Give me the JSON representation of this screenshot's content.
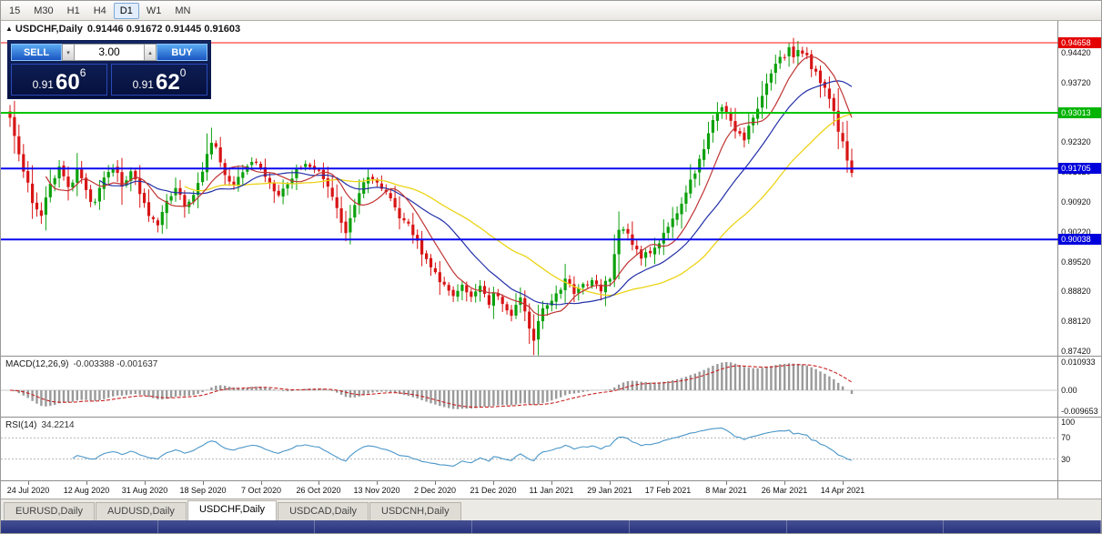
{
  "toolbar": {
    "timeframes": [
      {
        "label": "15",
        "active": false
      },
      {
        "label": "M30",
        "active": false
      },
      {
        "label": "H1",
        "active": false
      },
      {
        "label": "H4",
        "active": false
      },
      {
        "label": "D1",
        "active": true
      },
      {
        "label": "W1",
        "active": false
      },
      {
        "label": "MN",
        "active": false
      }
    ]
  },
  "chart": {
    "collapse_icon": "▲",
    "symbol": "USDCHF,Daily",
    "ohlc_text": "0.91446 0.91672 0.91445 0.91603",
    "trade": {
      "sell_label": "SELL",
      "buy_label": "BUY",
      "volume": "3.00",
      "spin_down_icon": "▾",
      "spin_up_icon": "▴",
      "sell_price": {
        "prefix": "0.91",
        "big": "60",
        "sup": "6"
      },
      "buy_price": {
        "prefix": "0.91",
        "big": "62",
        "sup": "0"
      }
    },
    "colors": {
      "bull": "#0ca10c",
      "bear": "#d81414",
      "ma_fast_red": "#c03434",
      "ma_mid_blue": "#2330a8",
      "ma_slow_yellow": "#ecd416",
      "zero_line": "#c8c8c8",
      "macd_hist": "#9a9a9a",
      "macd_signal": "#c82222",
      "rsi_line": "#4a96c8",
      "rsi_level": "#b8b8b8"
    },
    "price_axis": {
      "ticks": [
        "0.94420",
        "0.93720",
        "0.93020",
        "0.92320",
        "0.91620",
        "0.90920",
        "0.90220",
        "0.89520",
        "0.88820",
        "0.88120",
        "0.87420"
      ],
      "badges": [
        {
          "value": "0.94658",
          "color": "#e40000"
        },
        {
          "value": "0.93013",
          "color": "#00b400"
        },
        {
          "value": "0.91705",
          "color": "#0000dc"
        },
        {
          "value": "0.90038",
          "color": "#0000dc"
        }
      ]
    },
    "hlines": [
      {
        "price": 0.94658,
        "color": "#ff1010",
        "w": 1
      },
      {
        "price": 0.93013,
        "color": "#00c400",
        "w": 2
      },
      {
        "price": 0.91705,
        "color": "#0a0af0",
        "w": 2
      },
      {
        "price": 0.90038,
        "color": "#0a0af0",
        "w": 2
      }
    ],
    "scale": {
      "pmax": 0.9517,
      "pmin": 0.8729
    },
    "bars": 189,
    "last_close": 0.91603,
    "ma_periods": {
      "fast": 9,
      "mid": 21,
      "slow": 40
    },
    "price_path": [
      [
        0,
        0.9285
      ],
      [
        1,
        0.924
      ],
      [
        3,
        0.917
      ],
      [
        5,
        0.9095
      ],
      [
        7,
        0.9065
      ],
      [
        9,
        0.913
      ],
      [
        11,
        0.917
      ],
      [
        13,
        0.912
      ],
      [
        15,
        0.9165
      ],
      [
        17,
        0.9115
      ],
      [
        19,
        0.9085
      ],
      [
        21,
        0.915
      ],
      [
        23,
        0.9175
      ],
      [
        25,
        0.9135
      ],
      [
        27,
        0.9165
      ],
      [
        29,
        0.911
      ],
      [
        31,
        0.906
      ],
      [
        33,
        0.9035
      ],
      [
        35,
        0.9095
      ],
      [
        37,
        0.913
      ],
      [
        39,
        0.9085
      ],
      [
        41,
        0.9115
      ],
      [
        43,
        0.916
      ],
      [
        45,
        0.9235
      ],
      [
        46,
        0.9215
      ],
      [
        48,
        0.915
      ],
      [
        50,
        0.9135
      ],
      [
        52,
        0.9165
      ],
      [
        54,
        0.919
      ],
      [
        56,
        0.9175
      ],
      [
        58,
        0.914
      ],
      [
        60,
        0.911
      ],
      [
        62,
        0.913
      ],
      [
        64,
        0.917
      ],
      [
        66,
        0.9185
      ],
      [
        68,
        0.9165
      ],
      [
        70,
        0.915
      ],
      [
        72,
        0.911
      ],
      [
        74,
        0.904
      ],
      [
        75,
        0.9025
      ],
      [
        77,
        0.909
      ],
      [
        79,
        0.9135
      ],
      [
        81,
        0.915
      ],
      [
        83,
        0.9125
      ],
      [
        85,
        0.91
      ],
      [
        87,
        0.906
      ],
      [
        89,
        0.904
      ],
      [
        91,
        0.8995
      ],
      [
        93,
        0.8955
      ],
      [
        95,
        0.8925
      ],
      [
        97,
        0.8895
      ],
      [
        99,
        0.8868
      ],
      [
        101,
        0.8905
      ],
      [
        103,
        0.8862
      ],
      [
        105,
        0.8895
      ],
      [
        107,
        0.885
      ],
      [
        108,
        0.8875
      ],
      [
        110,
        0.886
      ],
      [
        112,
        0.8825
      ],
      [
        114,
        0.887
      ],
      [
        116,
        0.88
      ],
      [
        117,
        0.876
      ],
      [
        118,
        0.882
      ],
      [
        120,
        0.8855
      ],
      [
        122,
        0.888
      ],
      [
        124,
        0.8905
      ],
      [
        126,
        0.888
      ],
      [
        128,
        0.8895
      ],
      [
        130,
        0.891
      ],
      [
        132,
        0.889
      ],
      [
        134,
        0.8915
      ],
      [
        136,
        0.902
      ],
      [
        137,
        0.9032
      ],
      [
        139,
        0.8988
      ],
      [
        141,
        0.8958
      ],
      [
        143,
        0.8975
      ],
      [
        145,
        0.8995
      ],
      [
        147,
        0.903
      ],
      [
        149,
        0.9072
      ],
      [
        151,
        0.9115
      ],
      [
        153,
        0.9165
      ],
      [
        155,
        0.9215
      ],
      [
        157,
        0.9282
      ],
      [
        159,
        0.932
      ],
      [
        160,
        0.93
      ],
      [
        162,
        0.9262
      ],
      [
        164,
        0.9242
      ],
      [
        166,
        0.9288
      ],
      [
        168,
        0.934
      ],
      [
        170,
        0.939
      ],
      [
        172,
        0.9428
      ],
      [
        174,
        0.945
      ],
      [
        175,
        0.9425
      ],
      [
        176,
        0.9442
      ],
      [
        178,
        0.943
      ],
      [
        180,
        0.9392
      ],
      [
        182,
        0.9355
      ],
      [
        184,
        0.9298
      ],
      [
        185,
        0.926
      ],
      [
        186,
        0.9235
      ],
      [
        187,
        0.9185
      ],
      [
        188,
        0.91603
      ]
    ]
  },
  "macd": {
    "label": "MACD(12,26,9)",
    "values": "-0.003388 -0.001637",
    "axis_top": "0.010933",
    "axis_mid": "0.00",
    "axis_bottom": "-0.009653",
    "params": {
      "fast": 12,
      "slow": 26,
      "signal": 9
    }
  },
  "rsi": {
    "label": "RSI(14)",
    "value": "34.2214",
    "period": 14,
    "axis": [
      "100",
      "70",
      "30"
    ],
    "levels": [
      70,
      30
    ]
  },
  "date_axis": {
    "labels": [
      "24 Jul 2020",
      "12 Aug 2020",
      "31 Aug 2020",
      "18 Sep 2020",
      "7 Oct 2020",
      "26 Oct 2020",
      "13 Nov 2020",
      "2 Dec 2020",
      "21 Dec 2020",
      "11 Jan 2021",
      "29 Jan 2021",
      "17 Feb 2021",
      "8 Mar 2021",
      "26 Mar 2021",
      "14 Apr 2021"
    ],
    "first_index": 4,
    "step": 13
  },
  "tabs": {
    "items": [
      "EURUSD,Daily",
      "AUDUSD,Daily",
      "USDCHF,Daily",
      "USDCAD,Daily",
      "USDCNH,Daily"
    ],
    "active": "USDCHF,Daily"
  },
  "taskbar": {
    "buttons": 7
  }
}
